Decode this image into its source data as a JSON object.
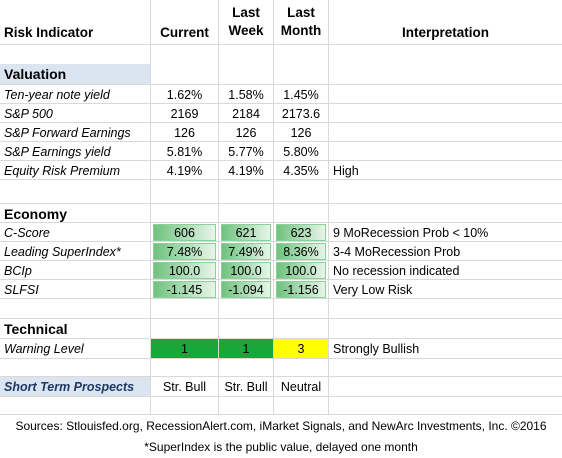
{
  "columns": {
    "indicator": "Risk Indicator",
    "current": "Current",
    "last_week_top": "Last",
    "last_week_bottom": "Week",
    "last_month_top": "Last",
    "last_month_bottom": "Month",
    "interpretation": "Interpretation"
  },
  "valuation": {
    "title": "Valuation",
    "rows": [
      {
        "label": "Ten-year note yield",
        "current": "1.62%",
        "week": "1.58%",
        "month": "1.45%",
        "interp": ""
      },
      {
        "label": "S&P 500",
        "current": "2169",
        "week": "2184",
        "month": "2173.6",
        "interp": ""
      },
      {
        "label": "S&P Forward Earnings",
        "current": "126",
        "week": "126",
        "month": "126",
        "interp": ""
      },
      {
        "label": "S&P Earnings yield",
        "current": "5.81%",
        "week": "5.77%",
        "month": "5.80%",
        "interp": ""
      },
      {
        "label": "Equity Risk Premium",
        "current": "4.19%",
        "week": "4.19%",
        "month": "4.35%",
        "interp": "High"
      }
    ]
  },
  "economy": {
    "title": "Economy",
    "rows": [
      {
        "label": "C-Score",
        "current": "606",
        "week": "621",
        "month": "623",
        "interp": "9 MoRecession Prob < 10%"
      },
      {
        "label": "Leading SuperIndex*",
        "current": "7.48%",
        "week": "7.49%",
        "month": "8.36%",
        "interp": "3-4 MoRecession Prob"
      },
      {
        "label": "BCIp",
        "current": "100.0",
        "week": "100.0",
        "month": "100.0",
        "interp": "No recession indicated"
      },
      {
        "label": "SLFSI",
        "current": "-1.145",
        "week": "-1.094",
        "month": "-1.156",
        "interp": "Very Low Risk"
      }
    ]
  },
  "technical": {
    "title": "Technical",
    "rows": [
      {
        "label": "Warning Level",
        "current": "1",
        "week": "1",
        "month": "3",
        "interp": "Strongly Bullish"
      }
    ]
  },
  "prospects": {
    "label": "Short Term Prospects",
    "current": "Str. Bull",
    "week": "Str. Bull",
    "month": "Neutral"
  },
  "footer": {
    "sources": "Sources: Stlouisfed.org, RecessionAlert.com, iMarket Signals, and NewArc Investments, Inc. ©2016",
    "note": "*SuperIndex is the public value, delayed one month"
  },
  "colors": {
    "section_bg": "#dbe5f1",
    "warning_green": "#18a738",
    "warning_yellow": "#ffff00",
    "prospects_text": "#1f3864"
  }
}
